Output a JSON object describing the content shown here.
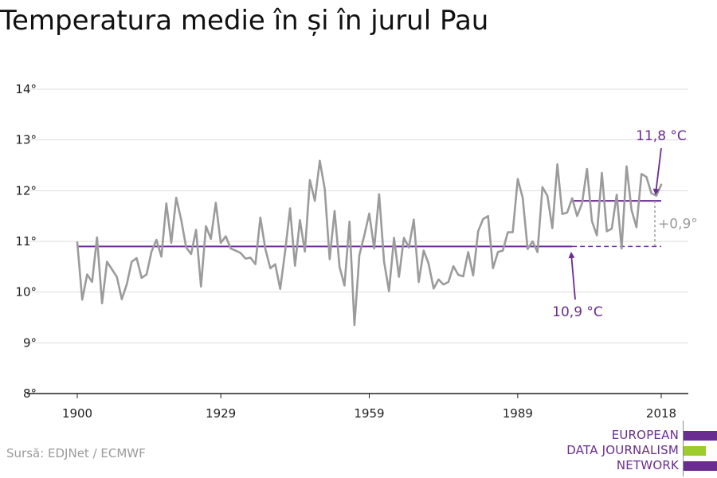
{
  "title": "Temperatura medie în și în jurul Pau",
  "source": "Sursă: EDJNet / ECMWF",
  "logo": {
    "lines": [
      "EUROPEAN",
      "DATA JOURNALISM",
      "NETWORK"
    ],
    "colors": {
      "primary": "#6a2c91",
      "secondary": "#9ecb2d"
    }
  },
  "colors": {
    "series": "#9b9b9b",
    "baseline": "#6a2c91",
    "grid": "#dedede",
    "axis": "#222222",
    "delta": "#9b9b9b"
  },
  "chart_data": {
    "type": "line",
    "x_range": [
      1900,
      2018
    ],
    "xticks": [
      1900,
      1929,
      1959,
      1989,
      2018
    ],
    "ylim": [
      8,
      14
    ],
    "yticks": [
      8,
      9,
      10,
      11,
      12,
      13,
      14
    ],
    "ytick_labels": [
      "8°",
      "9°",
      "10°",
      "11°",
      "12°",
      "13°",
      "14°"
    ],
    "grid": true,
    "series": [
      {
        "x": [
          1900,
          1901,
          1902,
          1903,
          1904,
          1905,
          1906,
          1907,
          1908,
          1909,
          1910,
          1911,
          1912,
          1913,
          1914,
          1915,
          1916,
          1917,
          1918,
          1919,
          1920,
          1921,
          1922,
          1923,
          1924,
          1925,
          1926,
          1927,
          1928,
          1929,
          1930,
          1931,
          1932,
          1933,
          1934,
          1935,
          1936,
          1937,
          1938,
          1939,
          1940,
          1941,
          1942,
          1943,
          1944,
          1945,
          1946,
          1947,
          1948,
          1949,
          1950,
          1951,
          1952,
          1953,
          1954,
          1955,
          1956,
          1957,
          1958,
          1959,
          1960,
          1961,
          1962,
          1963,
          1964,
          1965,
          1966,
          1967,
          1968,
          1969,
          1970,
          1971,
          1972,
          1973,
          1974,
          1975,
          1976,
          1977,
          1978,
          1979,
          1980,
          1981,
          1982,
          1983,
          1984,
          1985,
          1986,
          1987,
          1988,
          1989,
          1990,
          1991,
          1992,
          1993,
          1994,
          1995,
          1996,
          1997,
          1998,
          1999,
          2000,
          2001,
          2002,
          2003,
          2004,
          2005,
          2006,
          2007,
          2008,
          2009,
          2010,
          2011,
          2012,
          2013,
          2014,
          2015,
          2016,
          2017,
          2018
        ],
        "y": [
          10.98,
          9.85,
          10.35,
          10.2,
          11.08,
          9.78,
          10.6,
          10.45,
          10.3,
          9.86,
          10.15,
          10.6,
          10.67,
          10.28,
          10.35,
          10.8,
          11.03,
          10.7,
          11.75,
          10.97,
          11.86,
          11.43,
          10.88,
          10.75,
          11.23,
          10.11,
          11.3,
          11.05,
          11.76,
          10.97,
          11.1,
          10.86,
          10.82,
          10.77,
          10.66,
          10.68,
          10.55,
          11.47,
          10.85,
          10.47,
          10.55,
          10.06,
          10.8,
          11.65,
          10.52,
          11.42,
          10.8,
          12.21,
          11.8,
          12.59,
          12.04,
          10.65,
          11.6,
          10.5,
          10.13,
          11.39,
          9.35,
          10.73,
          11.12,
          11.55,
          10.86,
          11.93,
          10.6,
          10.02,
          11.07,
          10.3,
          11.07,
          10.88,
          11.43,
          10.2,
          10.82,
          10.56,
          10.07,
          10.25,
          10.15,
          10.2,
          10.51,
          10.34,
          10.31,
          10.79,
          10.33,
          11.2,
          11.44,
          11.5,
          10.47,
          10.79,
          10.82,
          11.18,
          11.18,
          12.23,
          11.86,
          10.85,
          11.0,
          10.79,
          12.07,
          11.9,
          11.26,
          12.52,
          11.54,
          11.57,
          11.85,
          11.5,
          11.75,
          12.43,
          11.4,
          11.12,
          12.35,
          11.2,
          11.25,
          11.92,
          10.86,
          12.48,
          11.62,
          11.28,
          12.33,
          12.27,
          11.95,
          11.9,
          12.12
        ]
      }
    ],
    "reference_periods": [
      {
        "label": "10,9 °C",
        "value": 10.9,
        "x_range": [
          1900,
          2000
        ]
      },
      {
        "label": "11,8 °C",
        "value": 11.8,
        "x_range": [
          2000,
          2018
        ]
      }
    ],
    "annotation_delta": "+0,9°"
  }
}
